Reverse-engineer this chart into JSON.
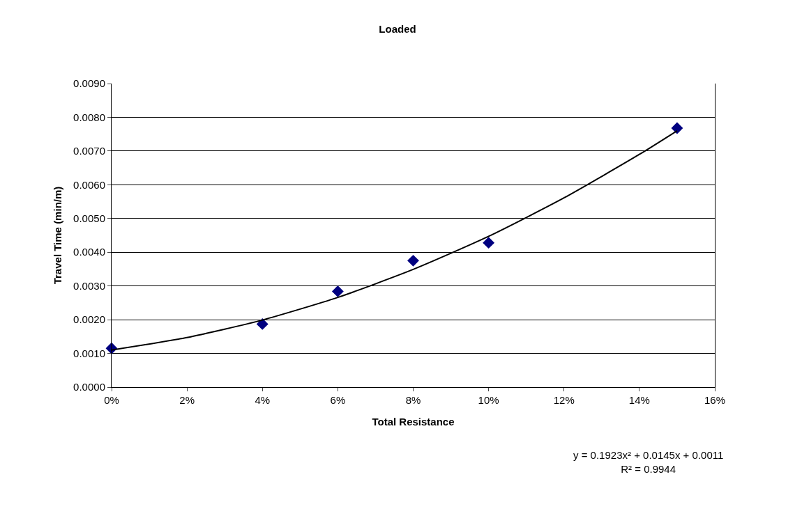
{
  "chart_data": {
    "type": "scatter",
    "title": "Loaded",
    "xlabel": "Total Resistance",
    "ylabel": "Travel Time (min/m)",
    "x": [
      0,
      0.04,
      0.06,
      0.08,
      0.1,
      0.15
    ],
    "series": [
      {
        "color": "#000080",
        "values": [
          0.00115,
          0.00187,
          0.00284,
          0.00375,
          0.00428,
          0.00768
        ],
        "marker": "diamond"
      },
      {
        "type": "line",
        "color": "#000000",
        "marker": "none",
        "x": [
          0,
          0.02,
          0.04,
          0.06,
          0.08,
          0.1,
          0.12,
          0.14,
          0.15
        ],
        "values": [
          0.0011,
          0.00147,
          0.00199,
          0.00266,
          0.00349,
          0.00447,
          0.00561,
          0.0069,
          0.0076
        ]
      }
    ],
    "xlim": [
      0,
      0.16
    ],
    "xticks": [
      {
        "value": 0,
        "label": "0%"
      },
      {
        "value": 0.02,
        "label": "2%"
      },
      {
        "value": 0.04,
        "label": "4%"
      },
      {
        "value": 0.06,
        "label": "6%"
      },
      {
        "value": 0.08,
        "label": "8%"
      },
      {
        "value": 0.1,
        "label": "10%"
      },
      {
        "value": 0.12,
        "label": "12%"
      },
      {
        "value": 0.14,
        "label": "14%"
      },
      {
        "value": 0.16,
        "label": "16%"
      }
    ],
    "ylim": [
      0,
      0.009
    ],
    "yticks": [
      {
        "value": 0,
        "label": "0.0000"
      },
      {
        "value": 0.001,
        "label": "0.0010"
      },
      {
        "value": 0.002,
        "label": "0.0020"
      },
      {
        "value": 0.003,
        "label": "0.0030"
      },
      {
        "value": 0.004,
        "label": "0.0040"
      },
      {
        "value": 0.005,
        "label": "0.0050"
      },
      {
        "value": 0.006,
        "label": "0.0060"
      },
      {
        "value": 0.007,
        "label": "0.0070"
      },
      {
        "value": 0.008,
        "label": "0.0080"
      },
      {
        "value": 0.009,
        "label": "0.0090"
      }
    ],
    "grid": "y",
    "annotations": [
      "y = 0.1923x² + 0.0145x + 0.0011\nR² = 0.9944"
    ]
  }
}
